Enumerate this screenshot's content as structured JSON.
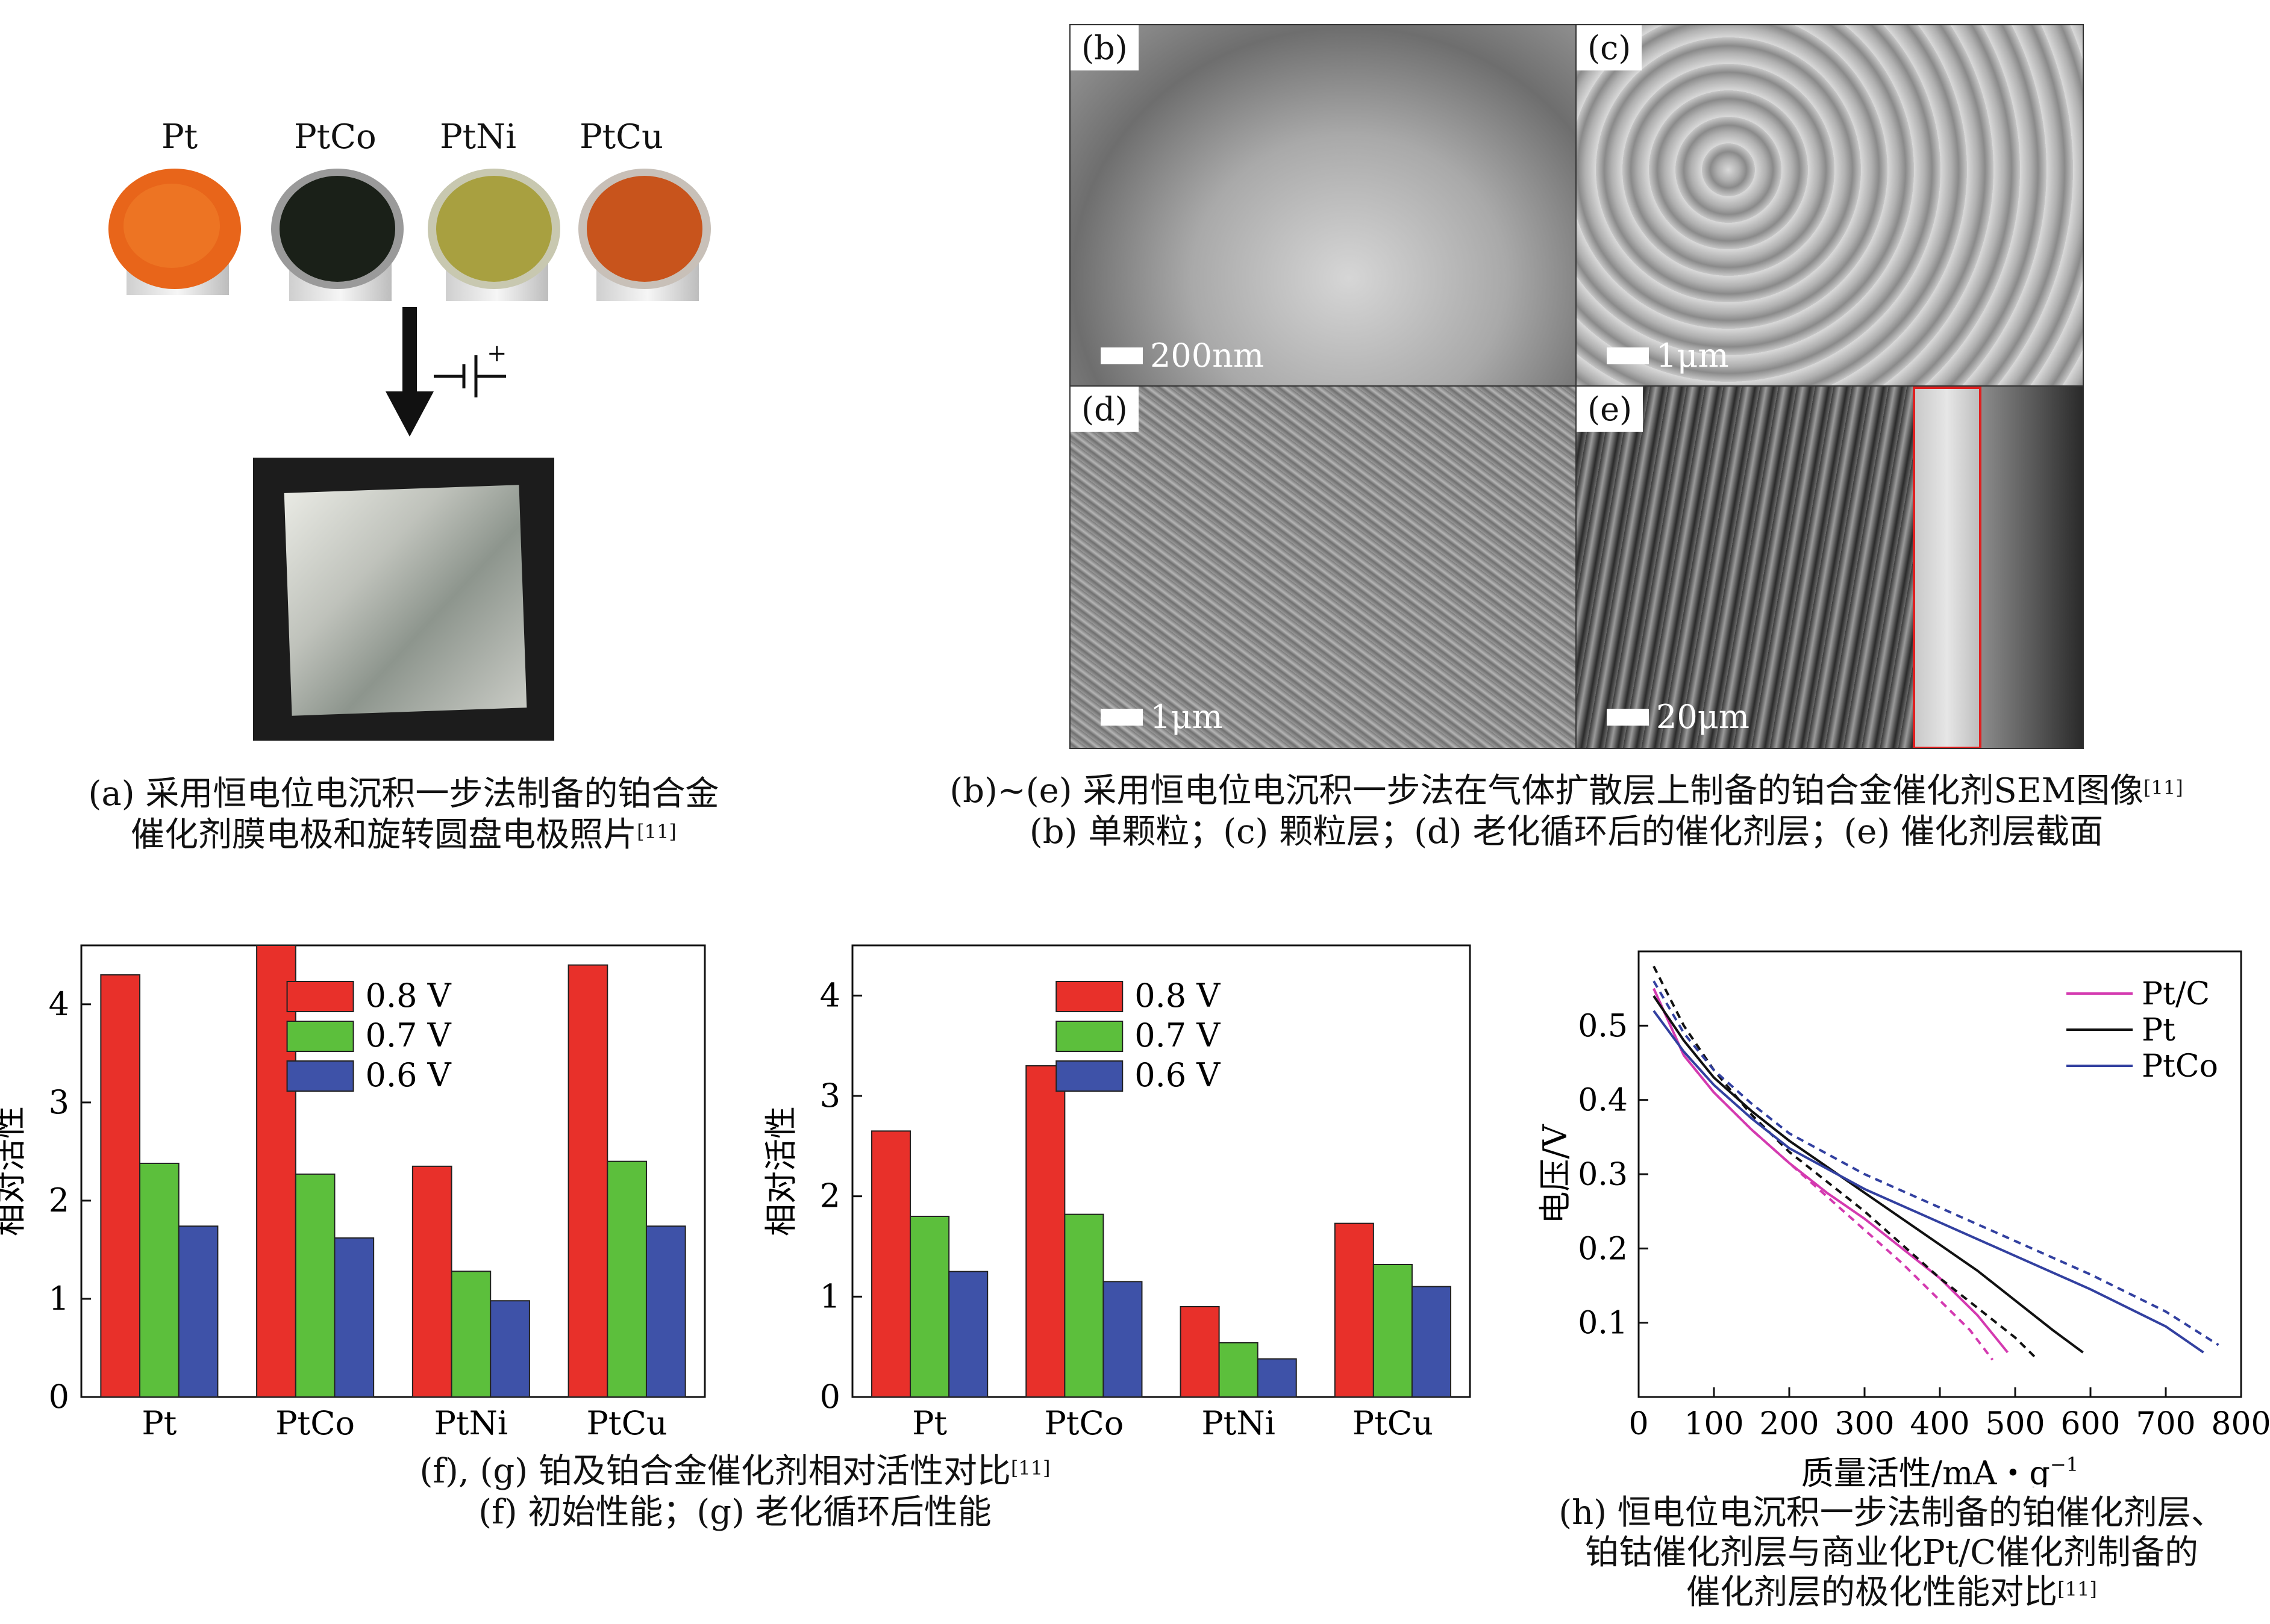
{
  "panel_a": {
    "labels": [
      "Pt",
      "PtCo",
      "PtNi",
      "PtCu"
    ],
    "colors": [
      "#e8651a",
      "#1a2018",
      "#a8a040",
      "#c8541c"
    ],
    "arrow_symbol": "⊣|⁺",
    "caption_line1": "(a) 采用恒电位电沉积一步法制备的铂合金",
    "caption_line2": "催化剂膜电极和旋转圆盘电极照片",
    "caption_ref": "[11]"
  },
  "panel_sem": {
    "tags": [
      "(b)",
      "(c)",
      "(d)",
      "(e)"
    ],
    "scales": [
      "200nm",
      "1μm",
      "1μm",
      "20μm"
    ],
    "caption_line1": "(b)~(e) 采用恒电位电沉积一步法在气体扩散层上制备的铂合金催化剂SEM图像",
    "caption_ref": "[11]",
    "caption_line2": "(b) 单颗粒；(c)  颗粒层；(d) 老化循环后的催化剂层；(e) 催化剂层截面"
  },
  "panel_fg": {
    "caption_line1": "(f), (g) 铂及铂合金催化剂相对活性对比",
    "caption_ref": "[11]",
    "caption_line2": "(f) 初始性能；(g) 老化循环后性能"
  },
  "panel_h": {
    "caption_line1": "(h) 恒电位电沉积一步法制备的铂催化剂层、",
    "caption_line2": "铂钴催化剂层与商业化Pt/C催化剂制备的",
    "caption_line3": "催化剂层的极化性能对比",
    "caption_ref": "[11]"
  },
  "chart_data": [
    {
      "type": "bar",
      "categories": [
        "Pt",
        "PtCo",
        "PtNi",
        "PtCu"
      ],
      "series": [
        {
          "name": "0.8 V",
          "color": "#e8302a",
          "values": [
            4.3,
            4.6,
            2.35,
            4.4
          ]
        },
        {
          "name": "0.7 V",
          "color": "#5cbf3c",
          "values": [
            2.38,
            2.27,
            1.28,
            2.4
          ]
        },
        {
          "name": "0.6 V",
          "color": "#3e52a8",
          "values": [
            1.74,
            1.62,
            0.98,
            1.74
          ]
        }
      ],
      "ylabel": "相对活性",
      "yticks": [
        "0",
        "1",
        "2",
        "3",
        "4"
      ],
      "ylim": [
        0,
        4.6
      ],
      "legend": "top-center"
    },
    {
      "type": "bar",
      "categories": [
        "Pt",
        "PtCo",
        "PtNi",
        "PtCu"
      ],
      "series": [
        {
          "name": "0.8 V",
          "color": "#e8302a",
          "values": [
            2.65,
            3.3,
            0.9,
            1.73
          ]
        },
        {
          "name": "0.7 V",
          "color": "#5cbf3c",
          "values": [
            1.8,
            1.82,
            0.54,
            1.32
          ]
        },
        {
          "name": "0.6 V",
          "color": "#3e52a8",
          "values": [
            1.25,
            1.15,
            0.38,
            1.1
          ]
        }
      ],
      "ylabel": "相对活性",
      "yticks": [
        "0",
        "1",
        "2",
        "3",
        "4"
      ],
      "ylim": [
        0,
        4.5
      ],
      "legend": "top-center"
    },
    {
      "type": "line",
      "xlabel": "质量活性/mA・g",
      "xlabel_sup": "−1",
      "ylabel": "电压/V",
      "xlim": [
        0,
        800
      ],
      "ylim": [
        0,
        0.6
      ],
      "xticks": [
        "0",
        "100",
        "200",
        "300",
        "400",
        "500",
        "600",
        "700",
        "800"
      ],
      "yticks": [
        "0.1",
        "0.2",
        "0.3",
        "0.4",
        "0.5"
      ],
      "series": [
        {
          "name": "Pt/C",
          "color": "#d43ab0",
          "dashed": false,
          "x": [
            20,
            60,
            100,
            150,
            200,
            250,
            300,
            350,
            400,
            450,
            490
          ],
          "y": [
            0.55,
            0.46,
            0.41,
            0.36,
            0.315,
            0.275,
            0.24,
            0.2,
            0.16,
            0.11,
            0.06
          ]
        },
        {
          "name": "",
          "color": "#d43ab0",
          "dashed": true,
          "x": [
            20,
            60,
            100,
            150,
            200,
            250,
            300,
            350,
            400,
            440,
            470
          ],
          "y": [
            0.55,
            0.46,
            0.41,
            0.36,
            0.315,
            0.27,
            0.225,
            0.18,
            0.13,
            0.09,
            0.05
          ]
        },
        {
          "name": "Pt",
          "color": "#111111",
          "dashed": false,
          "x": [
            20,
            60,
            100,
            150,
            200,
            250,
            300,
            350,
            400,
            450,
            500,
            550,
            590
          ],
          "y": [
            0.54,
            0.48,
            0.43,
            0.385,
            0.345,
            0.31,
            0.275,
            0.24,
            0.205,
            0.17,
            0.13,
            0.09,
            0.06
          ]
        },
        {
          "name": "",
          "color": "#111111",
          "dashed": true,
          "x": [
            20,
            60,
            100,
            150,
            200,
            250,
            300,
            350,
            400,
            450,
            500,
            530
          ],
          "y": [
            0.58,
            0.5,
            0.44,
            0.38,
            0.33,
            0.29,
            0.25,
            0.205,
            0.16,
            0.12,
            0.08,
            0.05
          ]
        },
        {
          "name": "PtCo",
          "color": "#3240a0",
          "dashed": false,
          "x": [
            20,
            60,
            100,
            150,
            200,
            300,
            400,
            500,
            600,
            700,
            750
          ],
          "y": [
            0.52,
            0.465,
            0.42,
            0.375,
            0.335,
            0.28,
            0.235,
            0.19,
            0.145,
            0.095,
            0.06
          ]
        },
        {
          "name": "",
          "color": "#3240a0",
          "dashed": true,
          "x": [
            20,
            60,
            100,
            150,
            200,
            300,
            400,
            500,
            600,
            700,
            770
          ],
          "y": [
            0.56,
            0.49,
            0.44,
            0.395,
            0.355,
            0.3,
            0.255,
            0.21,
            0.165,
            0.115,
            0.07
          ]
        }
      ],
      "legend": "top-right"
    }
  ]
}
